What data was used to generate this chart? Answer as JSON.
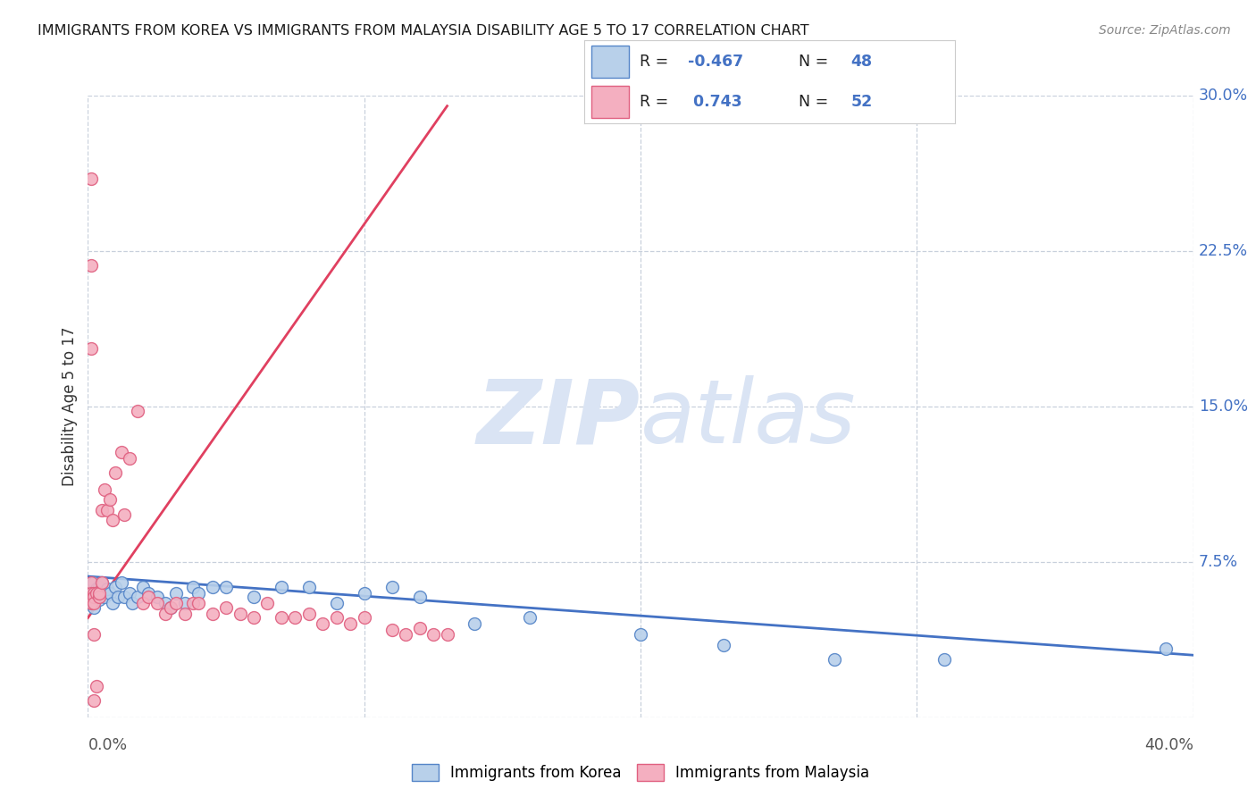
{
  "title": "IMMIGRANTS FROM KOREA VS IMMIGRANTS FROM MALAYSIA DISABILITY AGE 5 TO 17 CORRELATION CHART",
  "source": "Source: ZipAtlas.com",
  "ylabel": "Disability Age 5 to 17",
  "xlim": [
    0.0,
    0.4
  ],
  "ylim": [
    -0.02,
    0.31
  ],
  "plot_ylim": [
    0.0,
    0.3
  ],
  "ytick_positions": [
    0.0,
    0.075,
    0.15,
    0.225,
    0.3
  ],
  "ytick_labels": [
    "",
    "7.5%",
    "15.0%",
    "22.5%",
    "30.0%"
  ],
  "xtick_positions": [
    0.0,
    0.4
  ],
  "xtick_labels": [
    "0.0%",
    "40.0%"
  ],
  "legend_r_korea": "-0.467",
  "legend_n_korea": "48",
  "legend_r_malaysia": "0.743",
  "legend_n_malaysia": "52",
  "korea_fill": "#b8d0ea",
  "malaysia_fill": "#f4afc0",
  "korea_edge": "#5585c8",
  "malaysia_edge": "#e06080",
  "korea_line": "#4472c4",
  "malaysia_line": "#e04060",
  "watermark_color": "#dae4f4",
  "grid_color": "#c8d0dc",
  "korea_scatter_x": [
    0.001,
    0.001,
    0.001,
    0.002,
    0.002,
    0.002,
    0.003,
    0.003,
    0.004,
    0.004,
    0.005,
    0.005,
    0.006,
    0.007,
    0.008,
    0.009,
    0.01,
    0.011,
    0.012,
    0.013,
    0.015,
    0.016,
    0.018,
    0.02,
    0.022,
    0.025,
    0.028,
    0.03,
    0.032,
    0.035,
    0.038,
    0.04,
    0.045,
    0.05,
    0.06,
    0.07,
    0.08,
    0.09,
    0.1,
    0.11,
    0.12,
    0.14,
    0.16,
    0.2,
    0.23,
    0.27,
    0.31,
    0.39
  ],
  "korea_scatter_y": [
    0.065,
    0.06,
    0.055,
    0.065,
    0.058,
    0.053,
    0.062,
    0.058,
    0.063,
    0.057,
    0.065,
    0.06,
    0.058,
    0.062,
    0.06,
    0.055,
    0.063,
    0.058,
    0.065,
    0.058,
    0.06,
    0.055,
    0.058,
    0.063,
    0.06,
    0.058,
    0.055,
    0.053,
    0.06,
    0.055,
    0.063,
    0.06,
    0.063,
    0.063,
    0.058,
    0.063,
    0.063,
    0.055,
    0.06,
    0.063,
    0.058,
    0.045,
    0.048,
    0.04,
    0.035,
    0.028,
    0.028,
    0.033
  ],
  "malaysia_scatter_x": [
    0.001,
    0.001,
    0.001,
    0.001,
    0.001,
    0.002,
    0.002,
    0.002,
    0.002,
    0.003,
    0.003,
    0.004,
    0.004,
    0.005,
    0.005,
    0.006,
    0.007,
    0.008,
    0.009,
    0.01,
    0.012,
    0.013,
    0.015,
    0.018,
    0.02,
    0.022,
    0.025,
    0.028,
    0.03,
    0.032,
    0.035,
    0.038,
    0.04,
    0.045,
    0.05,
    0.055,
    0.06,
    0.065,
    0.07,
    0.075,
    0.08,
    0.085,
    0.09,
    0.095,
    0.1,
    0.11,
    0.115,
    0.12,
    0.125,
    0.13,
    0.001,
    0.002
  ],
  "malaysia_scatter_y": [
    0.065,
    0.06,
    0.055,
    0.178,
    0.218,
    0.06,
    0.058,
    0.055,
    0.008,
    0.06,
    0.015,
    0.058,
    0.06,
    0.065,
    0.1,
    0.11,
    0.1,
    0.105,
    0.095,
    0.118,
    0.128,
    0.098,
    0.125,
    0.148,
    0.055,
    0.058,
    0.055,
    0.05,
    0.053,
    0.055,
    0.05,
    0.055,
    0.055,
    0.05,
    0.053,
    0.05,
    0.048,
    0.055,
    0.048,
    0.048,
    0.05,
    0.045,
    0.048,
    0.045,
    0.048,
    0.042,
    0.04,
    0.043,
    0.04,
    0.04,
    0.26,
    0.04
  ],
  "korea_trend_x": [
    0.0,
    0.4
  ],
  "korea_trend_y": [
    0.068,
    0.03
  ],
  "malaysia_trend_x": [
    0.0,
    0.13
  ],
  "malaysia_trend_y": [
    0.048,
    0.295
  ]
}
